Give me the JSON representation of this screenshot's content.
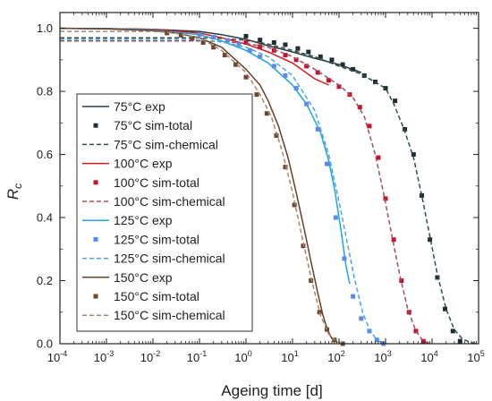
{
  "chart_data": {
    "type": "line",
    "xlabel": "Ageing time [d]",
    "ylabel": "R",
    "ylabel_sub": "c",
    "xscale": "log",
    "xlim": [
      0.0001,
      100000
    ],
    "ylim": [
      0,
      1.05
    ],
    "xticks": [
      {
        "value": 0.0001,
        "base": "10",
        "exp": "-4"
      },
      {
        "value": 0.001,
        "base": "10",
        "exp": "-3"
      },
      {
        "value": 0.01,
        "base": "10",
        "exp": "-2"
      },
      {
        "value": 0.1,
        "base": "10",
        "exp": "-1"
      },
      {
        "value": 1,
        "base": "10",
        "exp": "0"
      },
      {
        "value": 10,
        "base": "10",
        "exp": "1"
      },
      {
        "value": 100,
        "base": "10",
        "exp": "2"
      },
      {
        "value": 1000,
        "base": "10",
        "exp": "3"
      },
      {
        "value": 10000,
        "base": "10",
        "exp": "4"
      },
      {
        "value": 100000,
        "base": "10",
        "exp": "5"
      }
    ],
    "yticks": [
      "0.0",
      "0.2",
      "0.4",
      "0.6",
      "0.8",
      "1.0"
    ],
    "ytick_values": [
      0,
      0.2,
      0.4,
      0.6,
      0.8,
      1.0
    ],
    "legend_position": "left",
    "grid": false,
    "series": [
      {
        "name": "75°C exp",
        "style": "line",
        "color": "#2b3a44",
        "x": [
          0.0001,
          0.001,
          0.01,
          0.1,
          0.3,
          1,
          3,
          10,
          30,
          100,
          300
        ],
        "y": [
          1.0,
          0.999,
          0.997,
          0.99,
          0.98,
          0.965,
          0.945,
          0.925,
          0.905,
          0.885,
          0.86
        ]
      },
      {
        "name": "75°C sim-total",
        "style": "markers",
        "color": "#1f2d36",
        "x": [
          1,
          2,
          4,
          7,
          13,
          22,
          40,
          70,
          120,
          200,
          350,
          600,
          1000,
          1600,
          2600,
          4000,
          6000,
          9000,
          13000,
          19000,
          28000,
          40000
        ],
        "y": [
          0.975,
          0.963,
          0.955,
          0.948,
          0.936,
          0.925,
          0.91,
          0.9,
          0.885,
          0.87,
          0.85,
          0.83,
          0.81,
          0.77,
          0.68,
          0.6,
          0.47,
          0.33,
          0.21,
          0.11,
          0.04,
          0.008
        ]
      },
      {
        "name": "75°C sim-chemical",
        "style": "dashed",
        "color": "#2f5045",
        "x": [
          0.0001,
          0.1,
          0.3,
          1,
          3,
          10,
          30,
          100,
          300,
          1000,
          1500,
          2500,
          4000,
          6000,
          9000,
          13000,
          20000,
          30000,
          45000,
          70000,
          100000
        ],
        "y": [
          0.97,
          0.97,
          0.968,
          0.962,
          0.95,
          0.93,
          0.91,
          0.88,
          0.855,
          0.81,
          0.76,
          0.68,
          0.59,
          0.47,
          0.34,
          0.22,
          0.11,
          0.045,
          0.015,
          0.003,
          0.0
        ]
      },
      {
        "name": "100°C exp",
        "style": "line",
        "color": "#d7191c",
        "x": [
          0.0001,
          0.001,
          0.01,
          0.1,
          0.3,
          1,
          3,
          10,
          30,
          60
        ],
        "y": [
          1.0,
          0.999,
          0.997,
          0.985,
          0.97,
          0.95,
          0.925,
          0.89,
          0.84,
          0.82
        ]
      },
      {
        "name": "100°C sim-total",
        "style": "markers",
        "color": "#c8102e",
        "x": [
          1,
          2,
          4,
          7,
          12,
          20,
          35,
          60,
          100,
          170,
          280,
          450,
          700,
          1000,
          1500,
          2200,
          3200,
          4500,
          6500
        ],
        "y": [
          0.955,
          0.942,
          0.93,
          0.915,
          0.9,
          0.88,
          0.86,
          0.835,
          0.815,
          0.79,
          0.75,
          0.69,
          0.59,
          0.46,
          0.33,
          0.2,
          0.1,
          0.04,
          0.008
        ]
      },
      {
        "name": "100°C sim-chemical",
        "style": "dashed",
        "color": "#a0505a",
        "x": [
          0.0001,
          0.1,
          0.3,
          1,
          3,
          10,
          30,
          100,
          200,
          350,
          600,
          900,
          1300,
          2000,
          3000,
          4500,
          6500,
          9000
        ],
        "y": [
          0.96,
          0.96,
          0.958,
          0.952,
          0.94,
          0.91,
          0.87,
          0.82,
          0.78,
          0.72,
          0.6,
          0.48,
          0.36,
          0.22,
          0.11,
          0.04,
          0.008,
          0.0
        ]
      },
      {
        "name": "125°C exp",
        "style": "line",
        "color": "#1aa7e0",
        "x": [
          0.0001,
          0.001,
          0.01,
          0.1,
          0.3,
          1,
          3,
          10,
          20,
          40,
          60,
          80,
          110,
          140,
          170
        ],
        "y": [
          1.0,
          0.999,
          0.995,
          0.98,
          0.96,
          0.93,
          0.89,
          0.82,
          0.76,
          0.67,
          0.58,
          0.49,
          0.36,
          0.25,
          0.19
        ]
      },
      {
        "name": "125°C sim-total",
        "style": "markers",
        "color": "#5b8be8",
        "x": [
          0.1,
          0.2,
          0.4,
          0.7,
          1.2,
          2,
          4,
          7,
          12,
          20,
          35,
          55,
          85,
          130,
          200,
          300,
          450,
          650,
          900
        ],
        "y": [
          0.98,
          0.972,
          0.962,
          0.948,
          0.93,
          0.91,
          0.88,
          0.85,
          0.81,
          0.76,
          0.68,
          0.57,
          0.4,
          0.27,
          0.15,
          0.08,
          0.04,
          0.012,
          0.0
        ]
      },
      {
        "name": "125°C sim-chemical",
        "style": "dashed",
        "color": "#4ea3e6",
        "x": [
          0.0001,
          0.05,
          0.1,
          0.3,
          1,
          3,
          10,
          30,
          60,
          100,
          150,
          220,
          320,
          450,
          650,
          900,
          1100
        ],
        "y": [
          0.965,
          0.965,
          0.963,
          0.957,
          0.94,
          0.91,
          0.85,
          0.74,
          0.6,
          0.45,
          0.32,
          0.2,
          0.1,
          0.045,
          0.012,
          0.002,
          0.0
        ]
      },
      {
        "name": "150°C exp",
        "style": "line",
        "color": "#6b3f2a",
        "x": [
          0.0001,
          0.001,
          0.01,
          0.03,
          0.1,
          0.3,
          1,
          2,
          3,
          5,
          8,
          12,
          18,
          25,
          35,
          45,
          55,
          65,
          75
        ],
        "y": [
          1.0,
          0.998,
          0.993,
          0.985,
          0.97,
          0.94,
          0.87,
          0.82,
          0.77,
          0.69,
          0.59,
          0.48,
          0.36,
          0.26,
          0.16,
          0.09,
          0.05,
          0.025,
          0.01
        ]
      },
      {
        "name": "150°C sim-total",
        "style": "markers",
        "color": "#6e4632",
        "x": [
          0.02,
          0.04,
          0.07,
          0.12,
          0.2,
          0.35,
          0.6,
          1,
          1.7,
          2.8,
          4.5,
          7,
          11,
          17,
          25,
          38,
          55,
          80,
          120
        ],
        "y": [
          0.985,
          0.978,
          0.968,
          0.955,
          0.94,
          0.915,
          0.885,
          0.845,
          0.79,
          0.73,
          0.66,
          0.56,
          0.44,
          0.31,
          0.2,
          0.1,
          0.045,
          0.012,
          0.0
        ]
      },
      {
        "name": "150°C sim-chemical",
        "style": "dashed",
        "color": "#a08870",
        "x": [
          0.0001,
          0.01,
          0.03,
          0.1,
          0.3,
          1,
          2,
          3.5,
          6,
          10,
          16,
          25,
          40,
          60,
          90,
          140
        ],
        "y": [
          0.99,
          0.99,
          0.985,
          0.97,
          0.93,
          0.86,
          0.79,
          0.72,
          0.61,
          0.48,
          0.34,
          0.21,
          0.09,
          0.03,
          0.006,
          0.0
        ]
      }
    ]
  }
}
